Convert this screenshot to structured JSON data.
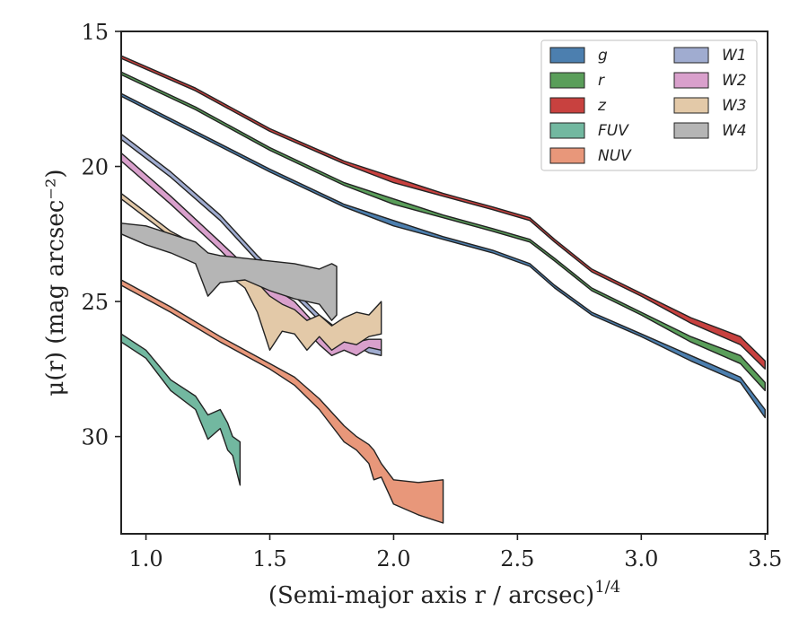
{
  "chart_data": {
    "type": "area",
    "xlabel": "(Semi-major axis r / arcsec)",
    "xlabel_exponent": "1/4",
    "ylabel": "μ(r) (mag arcsec⁻²)",
    "xlim": [
      0.9,
      3.51
    ],
    "ylim": [
      33.6,
      15.0
    ],
    "y_inverted": true,
    "x_ticks": [
      "1.0",
      "1.5",
      "2.0",
      "2.5",
      "3.0",
      "3.5"
    ],
    "y_ticks": [
      "15",
      "20",
      "25",
      "30"
    ],
    "legend_position": "top-right",
    "legend_columns": 2,
    "series": [
      {
        "name": "g",
        "color": "#4c7faf",
        "x": [
          0.9,
          1.2,
          1.5,
          1.8,
          2.0,
          2.2,
          2.4,
          2.55,
          2.65,
          2.8,
          3.0,
          3.2,
          3.4,
          3.5
        ],
        "lower": [
          17.3,
          18.7,
          20.1,
          21.4,
          22.0,
          22.6,
          23.1,
          23.6,
          24.4,
          25.4,
          26.2,
          27.0,
          27.8,
          29.0
        ],
        "upper": [
          17.4,
          18.8,
          20.2,
          21.5,
          22.2,
          22.7,
          23.2,
          23.7,
          24.5,
          25.5,
          26.3,
          27.2,
          28.0,
          29.3
        ]
      },
      {
        "name": "r",
        "color": "#5a9e5a",
        "x": [
          0.9,
          1.2,
          1.5,
          1.8,
          2.0,
          2.2,
          2.4,
          2.55,
          2.65,
          2.8,
          3.0,
          3.2,
          3.4,
          3.5
        ],
        "lower": [
          16.5,
          17.8,
          19.3,
          20.6,
          21.2,
          21.8,
          22.3,
          22.7,
          23.4,
          24.5,
          25.4,
          26.3,
          27.0,
          28.0
        ],
        "upper": [
          16.6,
          17.9,
          19.4,
          20.7,
          21.4,
          21.9,
          22.4,
          22.8,
          23.5,
          24.6,
          25.5,
          26.5,
          27.3,
          28.3
        ]
      },
      {
        "name": "z",
        "color": "#c8413f",
        "x": [
          0.9,
          1.2,
          1.5,
          1.8,
          2.0,
          2.2,
          2.4,
          2.55,
          2.65,
          2.8,
          3.0,
          3.2,
          3.4,
          3.5
        ],
        "lower": [
          15.9,
          17.1,
          18.6,
          19.8,
          20.4,
          21.0,
          21.5,
          21.9,
          22.7,
          23.8,
          24.7,
          25.6,
          26.3,
          27.2
        ],
        "upper": [
          16.0,
          17.2,
          18.7,
          19.9,
          20.6,
          21.1,
          21.6,
          22.0,
          22.8,
          23.9,
          24.8,
          25.8,
          26.6,
          27.5
        ]
      },
      {
        "name": "FUV",
        "color": "#72b8a0",
        "x": [
          0.9,
          1.0,
          1.1,
          1.2,
          1.25,
          1.3,
          1.33,
          1.35,
          1.38
        ],
        "lower": [
          26.2,
          26.8,
          27.9,
          28.5,
          29.2,
          29.0,
          29.5,
          30.0,
          30.2
        ],
        "upper": [
          26.5,
          27.1,
          28.3,
          29.0,
          30.1,
          29.7,
          30.5,
          30.7,
          31.8
        ]
      },
      {
        "name": "NUV",
        "color": "#e8977a",
        "x": [
          0.9,
          1.1,
          1.3,
          1.5,
          1.6,
          1.7,
          1.8,
          1.85,
          1.9,
          1.92,
          1.95,
          2.0,
          2.1,
          2.2
        ],
        "lower": [
          24.2,
          25.2,
          26.3,
          27.3,
          27.8,
          28.6,
          29.6,
          30.0,
          30.3,
          30.5,
          31.0,
          31.6,
          31.7,
          31.6
        ],
        "upper": [
          24.4,
          25.4,
          26.5,
          27.5,
          28.1,
          29.0,
          30.2,
          30.5,
          31.0,
          31.6,
          31.5,
          32.5,
          32.9,
          33.2
        ]
      },
      {
        "name": "W1",
        "color": "#a0acd0",
        "x": [
          0.9,
          1.1,
          1.3,
          1.45,
          1.6,
          1.7,
          1.8,
          1.9,
          1.95
        ],
        "lower": [
          18.8,
          20.2,
          21.8,
          23.3,
          24.6,
          25.5,
          26.2,
          26.6,
          26.8
        ],
        "upper": [
          19.0,
          20.4,
          22.0,
          23.5,
          24.8,
          25.7,
          26.4,
          26.9,
          27.0
        ]
      },
      {
        "name": "W2",
        "color": "#d9a0cc",
        "x": [
          0.9,
          1.1,
          1.3,
          1.45,
          1.6,
          1.7,
          1.75,
          1.8,
          1.85,
          1.9,
          1.95
        ],
        "lower": [
          19.5,
          21.1,
          22.8,
          24.1,
          25.0,
          26.0,
          26.6,
          26.4,
          26.5,
          26.4,
          26.4
        ],
        "upper": [
          19.8,
          21.4,
          23.1,
          24.5,
          25.6,
          26.6,
          27.0,
          26.8,
          27.0,
          26.7,
          26.8
        ]
      },
      {
        "name": "W3",
        "color": "#e3c9a8",
        "x": [
          0.9,
          1.0,
          1.1,
          1.2,
          1.3,
          1.4,
          1.45,
          1.5,
          1.55,
          1.6,
          1.65,
          1.7,
          1.75,
          1.8,
          1.85,
          1.9,
          1.95
        ],
        "lower": [
          21.0,
          21.7,
          22.4,
          22.9,
          23.5,
          24.1,
          24.3,
          24.8,
          25.1,
          25.3,
          25.7,
          25.5,
          25.9,
          25.6,
          25.4,
          25.5,
          25.0
        ],
        "upper": [
          21.2,
          21.9,
          22.6,
          23.2,
          23.8,
          24.5,
          25.4,
          26.8,
          26.1,
          26.2,
          26.8,
          26.3,
          26.8,
          26.5,
          26.6,
          26.3,
          26.2
        ]
      },
      {
        "name": "W4",
        "color": "#b5b5b5",
        "x": [
          0.9,
          1.0,
          1.1,
          1.2,
          1.25,
          1.3,
          1.4,
          1.5,
          1.6,
          1.7,
          1.75,
          1.77
        ],
        "lower": [
          22.1,
          22.2,
          22.5,
          22.8,
          23.2,
          23.3,
          23.4,
          23.5,
          23.6,
          23.8,
          23.6,
          23.7
        ],
        "upper": [
          22.5,
          22.9,
          23.2,
          23.6,
          24.8,
          24.3,
          24.2,
          24.6,
          24.9,
          25.1,
          25.7,
          25.5
        ]
      }
    ]
  }
}
